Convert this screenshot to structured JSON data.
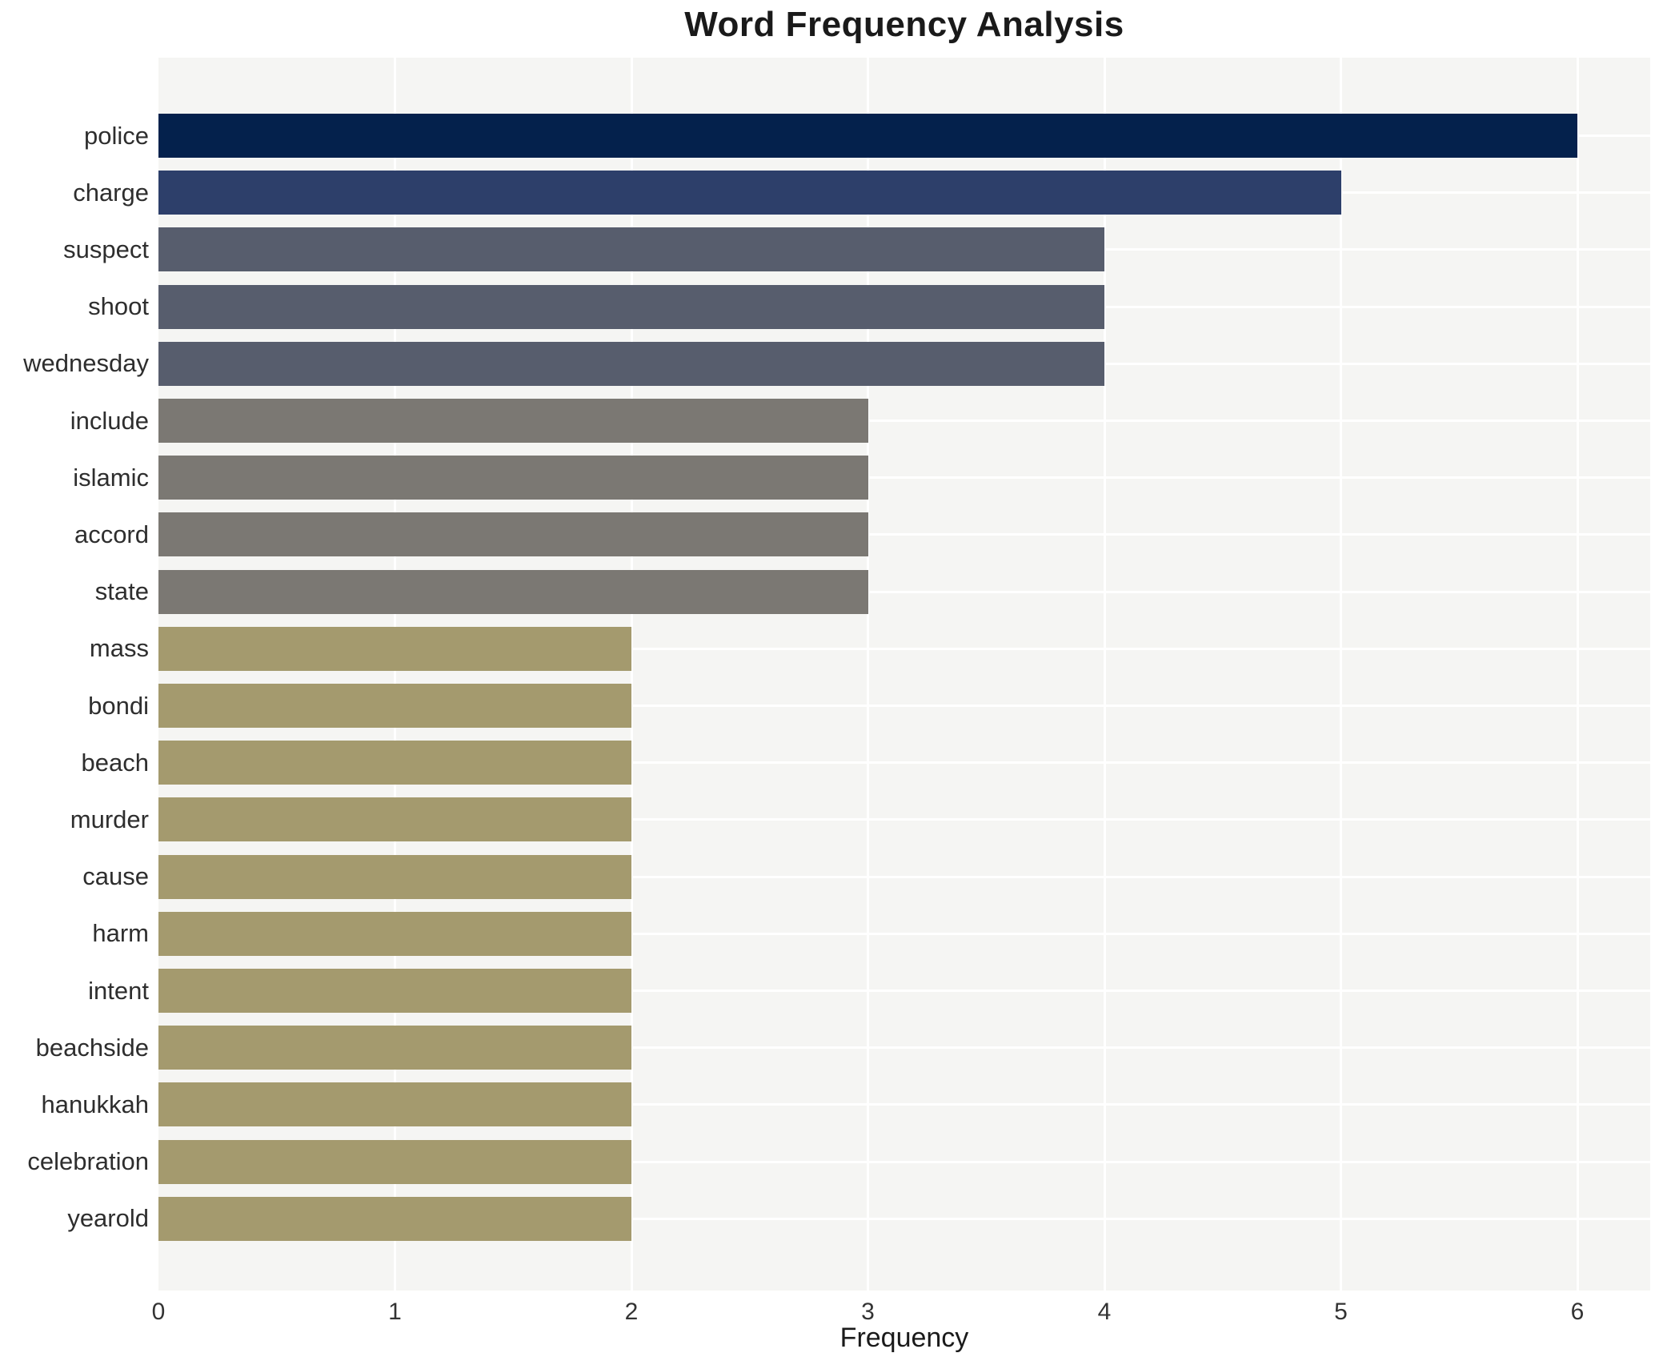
{
  "chart_data": {
    "type": "bar",
    "orientation": "horizontal",
    "title": "Word Frequency Analysis",
    "xlabel": "Frequency",
    "ylabel": "",
    "xlim": [
      0,
      6.31
    ],
    "xticks": [
      0,
      1,
      2,
      3,
      4,
      5,
      6
    ],
    "grid": "major-white-on-gray-panel",
    "legend": "none",
    "categories": [
      "police",
      "charge",
      "suspect",
      "shoot",
      "wednesday",
      "include",
      "islamic",
      "accord",
      "state",
      "mass",
      "bondi",
      "beach",
      "murder",
      "cause",
      "harm",
      "intent",
      "beachside",
      "hanukkah",
      "celebration",
      "yearold"
    ],
    "values": [
      6,
      5,
      4,
      4,
      4,
      3,
      3,
      3,
      3,
      2,
      2,
      2,
      2,
      2,
      2,
      2,
      2,
      2,
      2,
      2
    ],
    "bar_colors": [
      "#04214c",
      "#2d3f6a",
      "#575d6d",
      "#575d6d",
      "#575d6d",
      "#7b7873",
      "#7b7873",
      "#7b7873",
      "#7b7873",
      "#a49a6e",
      "#a49a6e",
      "#a49a6e",
      "#a49a6e",
      "#a49a6e",
      "#a49a6e",
      "#a49a6e",
      "#a49a6e",
      "#a49a6e",
      "#a49a6e",
      "#a49a6e"
    ],
    "colors": {
      "panel_background": "#f5f5f3",
      "gridline": "#ffffff",
      "outer_background": "#ffffff",
      "title_text": "#1a1a1a",
      "axis_text": "#333333",
      "category_text": "#2e2e2e"
    }
  }
}
